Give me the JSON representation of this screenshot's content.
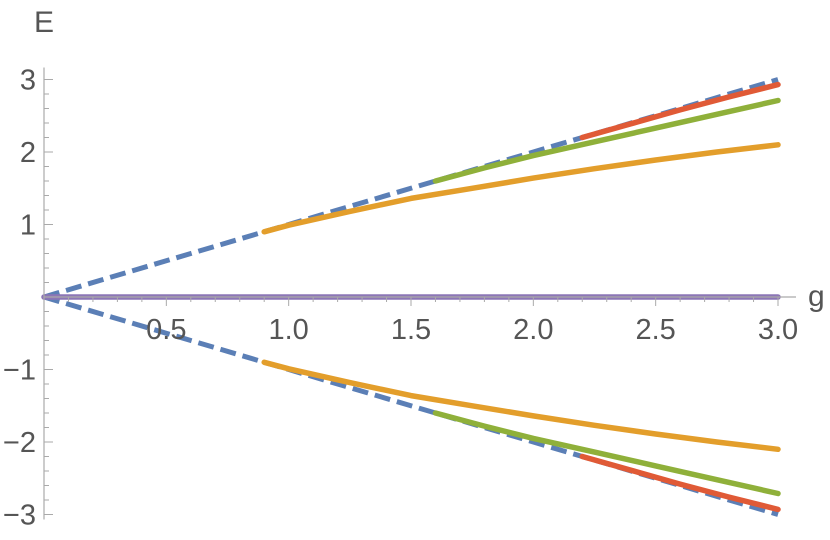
{
  "chart_data": {
    "type": "line",
    "xlabel": "g",
    "ylabel": "E",
    "xlim": [
      0,
      3.0
    ],
    "ylim": [
      -3,
      3
    ],
    "x_ticks": [
      {
        "value": 0.5,
        "label": "0.5"
      },
      {
        "value": 1.0,
        "label": "1.0"
      },
      {
        "value": 1.5,
        "label": "1.5"
      },
      {
        "value": 2.0,
        "label": "2.0"
      },
      {
        "value": 2.5,
        "label": "2.5"
      },
      {
        "value": 3.0,
        "label": "3.0"
      }
    ],
    "y_ticks": [
      {
        "value": 3,
        "label": "3"
      },
      {
        "value": 2,
        "label": "2"
      },
      {
        "value": 1,
        "label": "1"
      },
      {
        "value": -1,
        "label": "−1"
      },
      {
        "value": -2,
        "label": "−2"
      },
      {
        "value": -3,
        "label": "−3"
      }
    ],
    "grid": false,
    "legend": "none",
    "series": [
      {
        "color": "#5b7fb6",
        "dashed": true,
        "x": [
          0,
          3.0
        ],
        "y": [
          0,
          3.0
        ]
      },
      {
        "color": "#5b7fb6",
        "dashed": true,
        "x": [
          0,
          3.0
        ],
        "y": [
          0,
          -3.0
        ]
      },
      {
        "color": "#8c76b6",
        "x": [
          0,
          3.0
        ],
        "y": [
          0,
          0
        ]
      },
      {
        "color": "#e39e2b",
        "x": [
          0.9,
          1.0,
          1.25,
          1.5,
          1.75,
          2.0,
          2.25,
          2.5,
          2.75,
          3.0
        ],
        "y": [
          0.9,
          0.99,
          1.18,
          1.36,
          1.5,
          1.64,
          1.77,
          1.89,
          2.0,
          2.1
        ]
      },
      {
        "color": "#e39e2b",
        "x": [
          0.9,
          1.0,
          1.25,
          1.5,
          1.75,
          2.0,
          2.25,
          2.5,
          2.75,
          3.0
        ],
        "y": [
          -0.9,
          -0.99,
          -1.18,
          -1.36,
          -1.5,
          -1.64,
          -1.77,
          -1.89,
          -2.0,
          -2.1
        ]
      },
      {
        "color": "#8fb03a",
        "x": [
          1.6,
          1.8,
          2.0,
          2.25,
          2.5,
          2.75,
          3.0
        ],
        "y": [
          1.6,
          1.78,
          1.95,
          2.14,
          2.33,
          2.52,
          2.71
        ]
      },
      {
        "color": "#8fb03a",
        "x": [
          1.6,
          1.8,
          2.0,
          2.25,
          2.5,
          2.75,
          3.0
        ],
        "y": [
          -1.6,
          -1.78,
          -1.95,
          -2.14,
          -2.33,
          -2.52,
          -2.71
        ]
      },
      {
        "color": "#e05a36",
        "x": [
          2.2,
          2.4,
          2.6,
          2.8,
          3.0
        ],
        "y": [
          2.2,
          2.39,
          2.58,
          2.76,
          2.93
        ]
      },
      {
        "color": "#e05a36",
        "x": [
          2.2,
          2.4,
          2.6,
          2.8,
          3.0
        ],
        "y": [
          -2.2,
          -2.39,
          -2.58,
          -2.76,
          -2.93
        ]
      }
    ]
  }
}
